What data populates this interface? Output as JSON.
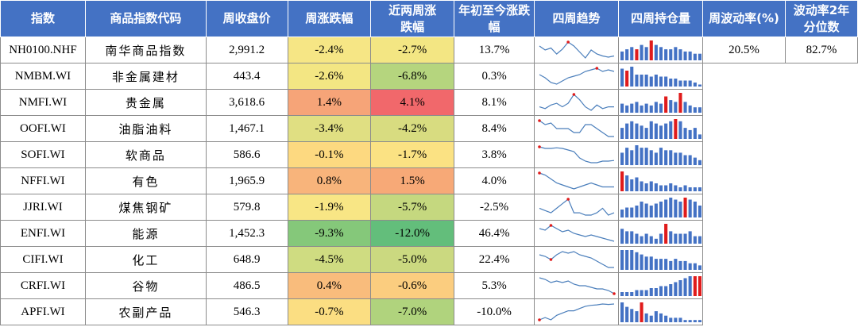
{
  "headers": {
    "code": "指数",
    "name": "商品指数代码",
    "close": "周收盘价",
    "week_chg": "周涨跌幅",
    "two_week_chg": "近两周涨跌幅",
    "ytd_chg": "年初至今涨跌幅",
    "trend": "四周趋势",
    "oi": "四周持仓量",
    "vol": "周波动率(%)",
    "vol_pct": "波动率2年分位数"
  },
  "colors": {
    "header": "#4472c4",
    "bar": "#4472c4",
    "bar_hi": "#e01b1b",
    "line": "#4a7ebb",
    "dot": "#e01b1b"
  },
  "rows": [
    {
      "code": "NH0100.NHF",
      "name": "南华商品指数",
      "close": "2,991.2",
      "week": "-2.4%",
      "week_bg": "#f6e685",
      "two": "-2.7%",
      "two_bg": "#f3e683",
      "ytd": "13.7%",
      "trend": [
        5,
        4,
        4.5,
        3,
        4.2,
        6,
        5,
        3.5,
        2,
        4,
        3,
        2.5,
        2.2,
        2.5
      ],
      "trend_hi": 5,
      "oi": [
        4,
        5,
        6,
        5,
        7,
        6,
        9,
        7,
        6,
        5,
        5,
        6,
        5,
        4,
        4,
        3,
        3
      ],
      "oi_hi": [
        3,
        6
      ],
      "vol": "20.5%",
      "vol_pct": "82.7%"
    },
    {
      "code": "NMBM.WI",
      "name": "非金属建材",
      "close": "443.4",
      "week": "-2.6%",
      "week_bg": "#f3e683",
      "two": "-6.8%",
      "two_bg": "#b5d57e",
      "ytd": "0.3%",
      "trend": [
        5,
        4,
        2.5,
        2,
        3,
        4,
        4.5,
        5,
        6,
        6.5,
        7,
        6,
        6.5,
        6
      ],
      "trend_hi": 10,
      "oi": [
        9,
        8,
        10,
        6,
        6,
        6,
        5,
        6,
        5,
        5,
        4,
        4,
        3,
        3,
        3,
        2,
        1
      ],
      "oi_hi": [
        1
      ]
    },
    {
      "code": "NMFI.WI",
      "name": "贵金属",
      "close": "3,618.6",
      "week": "1.4%",
      "week_bg": "#f6a478",
      "two": "4.1%",
      "two_bg": "#f1686b",
      "ytd": "8.1%",
      "trend": [
        4,
        3.5,
        4.5,
        5,
        4,
        5,
        7.5,
        6,
        4,
        3,
        4.5,
        3.5,
        4,
        4
      ],
      "trend_hi": 6,
      "oi": [
        5,
        4,
        5,
        6,
        4,
        5,
        4,
        6,
        5,
        9,
        7,
        6,
        11,
        6,
        4,
        3,
        3
      ],
      "oi_hi": [
        9,
        12
      ]
    },
    {
      "code": "OOFI.WI",
      "name": "油脂油料",
      "close": "1,467.1",
      "week": "-3.4%",
      "week_bg": "#e0df82",
      "two": "-4.2%",
      "two_bg": "#d8dc80",
      "ytd": "8.4%",
      "trend": [
        6.5,
        6,
        6.2,
        5.5,
        5.5,
        5.5,
        5,
        5,
        6,
        6,
        5.5,
        5,
        4.5,
        4.5
      ],
      "trend_hi": 0,
      "oi": [
        5,
        7,
        8,
        7,
        6,
        5,
        8,
        7,
        6,
        7,
        8,
        9,
        8,
        5,
        4,
        5,
        2
      ],
      "oi_hi": [
        11
      ]
    },
    {
      "code": "SOFI.WI",
      "name": "软商品",
      "close": "586.6",
      "week": "-0.1%",
      "week_bg": "#fdd980",
      "two": "-1.7%",
      "two_bg": "#fbe283",
      "ytd": "3.8%",
      "trend": [
        6.5,
        6,
        6,
        6.2,
        6,
        5.5,
        5,
        3,
        2,
        1.5,
        1.5,
        2,
        2,
        2.2
      ],
      "trend_hi": 0,
      "oi": [
        5,
        7,
        6,
        8,
        7,
        7,
        6,
        5,
        7,
        6,
        6,
        5,
        5,
        4,
        4,
        3,
        2
      ],
      "oi_hi": []
    },
    {
      "code": "NFFI.WI",
      "name": "有色",
      "close": "1,965.9",
      "week": "0.8%",
      "week_bg": "#f8b47b",
      "two": "1.5%",
      "two_bg": "#f7a977",
      "ytd": "4.0%",
      "trend": [
        6.5,
        6,
        5,
        4,
        3.5,
        3,
        2.5,
        3,
        3.5,
        4,
        3.5,
        3,
        3,
        3
      ],
      "trend_hi": 0,
      "oi": [
        10,
        8,
        6,
        7,
        5,
        4,
        5,
        4,
        3,
        3,
        4,
        3,
        2,
        3,
        2,
        2,
        2
      ],
      "oi_hi": [
        0
      ]
    },
    {
      "code": "JJRI.WI",
      "name": "煤焦钢矿",
      "close": "579.8",
      "week": "-1.9%",
      "week_bg": "#f8e685",
      "two": "-5.7%",
      "two_bg": "#c5d87f",
      "ytd": "-2.5%",
      "trend": [
        5,
        4.5,
        4,
        5,
        6,
        7,
        4,
        4,
        3.5,
        3.5,
        4,
        5,
        3.5,
        4
      ],
      "trend_hi": 5,
      "oi": [
        4,
        5,
        5,
        6,
        8,
        7,
        6,
        7,
        8,
        9,
        10,
        9,
        8,
        10,
        9,
        8,
        6
      ],
      "oi_hi": [
        13
      ]
    },
    {
      "code": "ENFI.WI",
      "name": "能源",
      "close": "1,452.3",
      "week": "-9.3%",
      "week_bg": "#85c87a",
      "two": "-12.0%",
      "two_bg": "#63be7b",
      "ytd": "46.4%",
      "trend": [
        6,
        5.5,
        7,
        6,
        5,
        5.5,
        4.5,
        4,
        3.5,
        4,
        3.5,
        3,
        2.5,
        2
      ],
      "trend_hi": 2,
      "oi": [
        6,
        5,
        5,
        4,
        3,
        4,
        3,
        2,
        4,
        8,
        5,
        4,
        4,
        4,
        5,
        3,
        3
      ],
      "oi_hi": [
        9
      ]
    },
    {
      "code": "CIFI.WI",
      "name": "化工",
      "close": "648.9",
      "week": "-4.5%",
      "week_bg": "#cfdc81",
      "two": "-5.0%",
      "two_bg": "#cbd980",
      "ytd": "22.4%",
      "trend": [
        6,
        5.5,
        4.5,
        6,
        7,
        6.5,
        7,
        6,
        5.5,
        5,
        4,
        3,
        2,
        2
      ],
      "trend_hi": 2,
      "oi": [
        9,
        9,
        9,
        8,
        7,
        6,
        6,
        5,
        5,
        5,
        4,
        5,
        4,
        4,
        3,
        3,
        2
      ],
      "oi_hi": []
    },
    {
      "code": "CRFI.WI",
      "name": "谷物",
      "close": "486.5",
      "week": "0.4%",
      "week_bg": "#f9bc7c",
      "two": "-0.6%",
      "two_bg": "#fbcd7f",
      "ytd": "5.3%",
      "trend": [
        6,
        5.5,
        4.5,
        5,
        4.5,
        5,
        4,
        3.5,
        3.5,
        3,
        2.5,
        2.5,
        2,
        1
      ],
      "trend_hi": 13,
      "oi": [
        2,
        2,
        2,
        3,
        3,
        3,
        4,
        4,
        5,
        5,
        6,
        7,
        8,
        9,
        10,
        10,
        10
      ],
      "oi_hi": [
        15,
        16
      ]
    },
    {
      "code": "APFI.WI",
      "name": "农副产品",
      "close": "546.3",
      "week": "-0.7%",
      "week_bg": "#fbde82",
      "two": "-7.0%",
      "two_bg": "#b0d37d",
      "ytd": "-10.0%",
      "trend": [
        3,
        3.5,
        3,
        4,
        4.5,
        5,
        5,
        5.5,
        6,
        6.2,
        6.3,
        6.5,
        6.4,
        6.5
      ],
      "trend_hi": 0,
      "oi": [
        9,
        7,
        6,
        5,
        9,
        4,
        3,
        5,
        4,
        3,
        2,
        2,
        2,
        1,
        1,
        1,
        1
      ],
      "oi_hi": [
        4
      ]
    }
  ]
}
